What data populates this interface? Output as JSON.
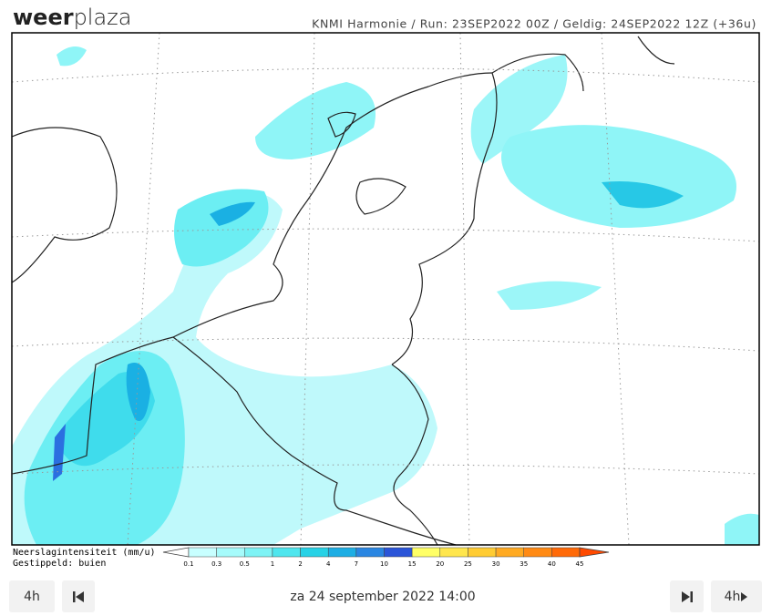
{
  "logo": {
    "bold": "weer",
    "light": "plaza"
  },
  "header": "KNMI Harmonie / Run: 23SEP2022 00Z / Geldig: 24SEP2022 12Z (+36u)",
  "legend": {
    "title": "Neerslagintensiteit (mm/u)",
    "note": "Gestippeld: buien",
    "ticks": [
      "0.1",
      "0.3",
      "0.5",
      "1",
      "2",
      "4",
      "7",
      "10",
      "15",
      "20",
      "25",
      "30",
      "35",
      "40",
      "45"
    ],
    "colors": [
      "#c8ffff",
      "#a6fbfb",
      "#7ef3f5",
      "#4fe6ee",
      "#27d2e6",
      "#1eaee4",
      "#2a86e2",
      "#2b55d8",
      "#ffff66",
      "#ffe64d",
      "#ffcc33",
      "#ffaa22",
      "#ff8a14",
      "#ff6a08"
    ],
    "over_color": "#ff4a00"
  },
  "controls": {
    "back_step": "4h",
    "date": "za 24 september 2022 14:00",
    "forward_step": "4h"
  }
}
